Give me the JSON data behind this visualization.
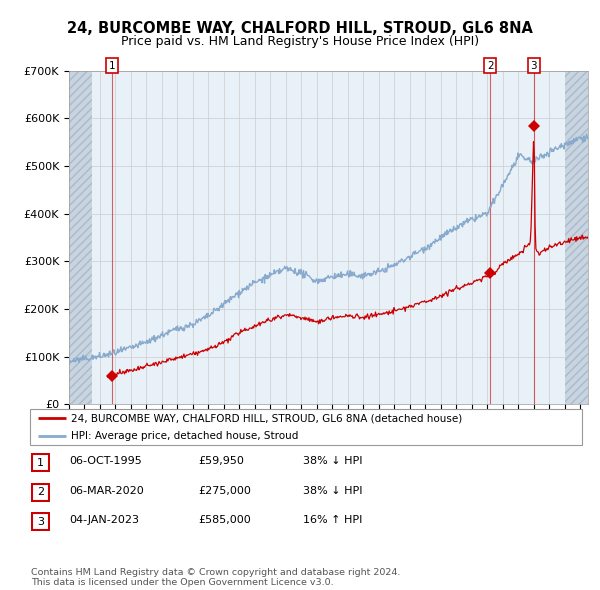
{
  "title": "24, BURCOMBE WAY, CHALFORD HILL, STROUD, GL6 8NA",
  "subtitle": "Price paid vs. HM Land Registry's House Price Index (HPI)",
  "title_fontsize": 10.5,
  "subtitle_fontsize": 9,
  "ylim": [
    0,
    700000
  ],
  "yticks": [
    0,
    100000,
    200000,
    300000,
    400000,
    500000,
    600000,
    700000
  ],
  "ytick_labels": [
    "£0",
    "£100K",
    "£200K",
    "£300K",
    "£400K",
    "£500K",
    "£600K",
    "£700K"
  ],
  "xlim_start": 1993.0,
  "xlim_end": 2026.5,
  "hatch_end": 1994.5,
  "hatch_start_right": 2025.0,
  "sale_dates": [
    1995.77,
    2020.18,
    2023.01
  ],
  "sale_prices": [
    59950,
    275000,
    585000
  ],
  "sale_labels": [
    "1",
    "2",
    "3"
  ],
  "legend_line1": "24, BURCOMBE WAY, CHALFORD HILL, STROUD, GL6 8NA (detached house)",
  "legend_line2": "HPI: Average price, detached house, Stroud",
  "table_rows": [
    [
      "1",
      "06-OCT-1995",
      "£59,950",
      "38% ↓ HPI"
    ],
    [
      "2",
      "06-MAR-2020",
      "£275,000",
      "38% ↓ HPI"
    ],
    [
      "3",
      "04-JAN-2023",
      "£585,000",
      "16% ↑ HPI"
    ]
  ],
  "footer": "Contains HM Land Registry data © Crown copyright and database right 2024.\nThis data is licensed under the Open Government Licence v3.0.",
  "red_color": "#cc0000",
  "blue_color": "#88aacc",
  "grid_color": "#cccccc",
  "plot_bg": "#e8f0f8"
}
